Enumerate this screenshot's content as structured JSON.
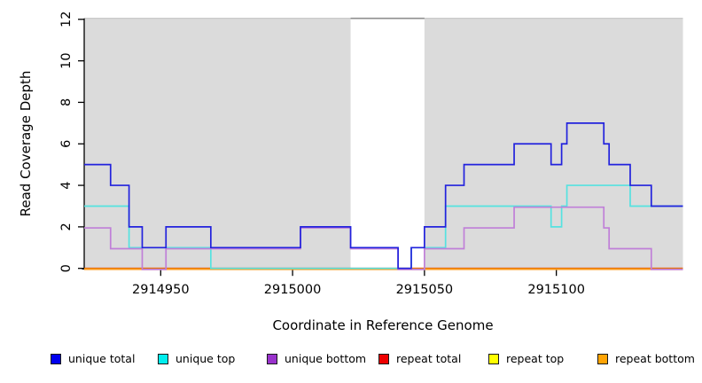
{
  "chart_data": {
    "type": "line",
    "subtype": "step",
    "title": "",
    "xlabel": "Coordinate in Reference Genome",
    "ylabel": "Read Coverage Depth",
    "xlim": [
      2914921,
      2915148
    ],
    "ylim": [
      0,
      12
    ],
    "xticks": [
      2914950,
      2915000,
      2915050,
      2915100
    ],
    "yticks": [
      0,
      2,
      4,
      6,
      8,
      10,
      12
    ],
    "grid": false,
    "legend_position": "bottom",
    "plot_background": "#ffffff",
    "shaded_regions": [
      {
        "x0": 2914921,
        "x1": 2915022,
        "color": "#dbdbdb"
      },
      {
        "x0": 2915050,
        "x1": 2915148,
        "color": "#dbdbdb"
      }
    ],
    "uncovered_gap": {
      "x0": 2915022,
      "x1": 2915050,
      "top_border_color": "#8f8f8f"
    },
    "series": [
      {
        "name": "unique total",
        "color": "#2222dd",
        "legend_color": "#0000ee",
        "points": [
          [
            2914921,
            5
          ],
          [
            2914931,
            4
          ],
          [
            2914938,
            2
          ],
          [
            2914943,
            1
          ],
          [
            2914952,
            2
          ],
          [
            2914969,
            1
          ],
          [
            2915003,
            2
          ],
          [
            2915022,
            1
          ],
          [
            2915040,
            0
          ],
          [
            2915045,
            1
          ],
          [
            2915050,
            2
          ],
          [
            2915058,
            4
          ],
          [
            2915065,
            5
          ],
          [
            2915084,
            6
          ],
          [
            2915098,
            5
          ],
          [
            2915102,
            6
          ],
          [
            2915104,
            7
          ],
          [
            2915118,
            6
          ],
          [
            2915120,
            5
          ],
          [
            2915128,
            4
          ],
          [
            2915136,
            3
          ],
          [
            2915148,
            3
          ]
        ]
      },
      {
        "name": "unique top",
        "color": "#55e2e0",
        "legend_color": "#00eeee",
        "points": [
          [
            2914921,
            3
          ],
          [
            2914938,
            1
          ],
          [
            2914969,
            0
          ],
          [
            2915045,
            1
          ],
          [
            2915058,
            3
          ],
          [
            2915098,
            2
          ],
          [
            2915102,
            3
          ],
          [
            2915104,
            4
          ],
          [
            2915128,
            3
          ],
          [
            2915148,
            3
          ]
        ]
      },
      {
        "name": "unique bottom",
        "color": "#c07fd8",
        "legend_color": "#9932cc",
        "points": [
          [
            2914921,
            2
          ],
          [
            2914931,
            1
          ],
          [
            2914943,
            0
          ],
          [
            2914952,
            1
          ],
          [
            2915003,
            2
          ],
          [
            2915022,
            1
          ],
          [
            2915040,
            0
          ],
          [
            2915050,
            1
          ],
          [
            2915065,
            2
          ],
          [
            2915084,
            3
          ],
          [
            2915118,
            2
          ],
          [
            2915120,
            1
          ],
          [
            2915136,
            0
          ],
          [
            2915148,
            0
          ]
        ]
      },
      {
        "name": "repeat total",
        "color": "#dd0000",
        "legend_color": "#ee0000",
        "points": [
          [
            2914921,
            0
          ],
          [
            2915148,
            0
          ]
        ]
      },
      {
        "name": "repeat top",
        "color": "#eded00",
        "legend_color": "#ffff00",
        "points": [
          [
            2914921,
            0
          ],
          [
            2915148,
            0
          ]
        ]
      },
      {
        "name": "repeat bottom",
        "color": "#ff9e24",
        "legend_color": "#ffa405",
        "points": [
          [
            2914921,
            0
          ],
          [
            2915148,
            0
          ]
        ]
      }
    ]
  }
}
